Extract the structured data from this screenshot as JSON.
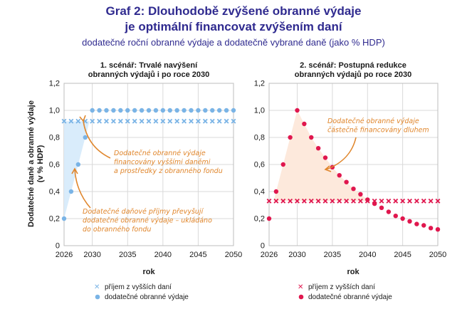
{
  "title_line1": "Graf 2: Dlouhodobě zvýšené obranné výdaje",
  "title_line2": "je optimální financovat zvýšením daní",
  "subtitle": "dodatečné roční obranné výdaje a dodatečně vybrané daně (jako % HDP)",
  "ylabel_line1": "Dodatečné daně a obranné výdaje",
  "ylabel_line2": "(v % HDP)",
  "colors": {
    "left_accent": "#7ab4e6",
    "right_accent": "#e0174e",
    "annotation": "#e0862c",
    "title": "#2f2a8f"
  },
  "chart_data": [
    {
      "type": "scatter",
      "panel": "left",
      "title_line1": "1. scénář: Trvalé navýšení",
      "title_line2": "obranných výdajů i po roce 2030",
      "xlabel": "rok",
      "xlim": [
        2026,
        2050
      ],
      "ylim": [
        0,
        1.2
      ],
      "x_ticks": [
        "2026",
        "2030",
        "2035",
        "2040",
        "2045",
        "2050"
      ],
      "y_ticks": [
        "0",
        "0,2",
        "0,4",
        "0,6",
        "0,8",
        "1,0",
        "1,2"
      ],
      "grid": true,
      "series": [
        {
          "name": "příjem z vyšších daní",
          "marker": "x",
          "x": [
            2026,
            2027,
            2028,
            2029,
            2030,
            2031,
            2032,
            2033,
            2034,
            2035,
            2036,
            2037,
            2038,
            2039,
            2040,
            2041,
            2042,
            2043,
            2044,
            2045,
            2046,
            2047,
            2048,
            2049,
            2050
          ],
          "y": [
            0.92,
            0.92,
            0.92,
            0.92,
            0.92,
            0.92,
            0.92,
            0.92,
            0.92,
            0.92,
            0.92,
            0.92,
            0.92,
            0.92,
            0.92,
            0.92,
            0.92,
            0.92,
            0.92,
            0.92,
            0.92,
            0.92,
            0.92,
            0.92,
            0.92
          ]
        },
        {
          "name": "dodatečné obranné výdaje",
          "marker": "dot",
          "x": [
            2026,
            2027,
            2028,
            2029,
            2030,
            2031,
            2032,
            2033,
            2034,
            2035,
            2036,
            2037,
            2038,
            2039,
            2040,
            2041,
            2042,
            2043,
            2044,
            2045,
            2046,
            2047,
            2048,
            2049,
            2050
          ],
          "y": [
            0.2,
            0.4,
            0.6,
            0.8,
            1.0,
            1.0,
            1.0,
            1.0,
            1.0,
            1.0,
            1.0,
            1.0,
            1.0,
            1.0,
            1.0,
            1.0,
            1.0,
            1.0,
            1.0,
            1.0,
            1.0,
            1.0,
            1.0,
            1.0,
            1.0
          ]
        }
      ],
      "annotations": [
        {
          "lines": [
            "Dodatečné obranné výdaje",
            "financovány vyššími daněmi",
            "a prostředky z obranného fondu"
          ]
        },
        {
          "lines": [
            "Dodatečné daňové příjmy převyšují",
            "dodatečné obranné výdaje – ukládáno",
            "do obranného fondu"
          ]
        }
      ]
    },
    {
      "type": "scatter",
      "panel": "right",
      "title_line1": "2. scénář: Postupná redukce",
      "title_line2": "obranných výdajů po roce 2030",
      "xlabel": "rok",
      "xlim": [
        2026,
        2050
      ],
      "ylim": [
        0,
        1.2
      ],
      "x_ticks": [
        "2026",
        "2030",
        "2035",
        "2040",
        "2045",
        "2050"
      ],
      "y_ticks": [
        "0",
        "0,2",
        "0,4",
        "0,6",
        "0,8",
        "1,0",
        "1,2"
      ],
      "grid": true,
      "series": [
        {
          "name": "příjem z vyšších daní",
          "marker": "x",
          "x": [
            2026,
            2027,
            2028,
            2029,
            2030,
            2031,
            2032,
            2033,
            2034,
            2035,
            2036,
            2037,
            2038,
            2039,
            2040,
            2041,
            2042,
            2043,
            2044,
            2045,
            2046,
            2047,
            2048,
            2049,
            2050
          ],
          "y": [
            0.33,
            0.33,
            0.33,
            0.33,
            0.33,
            0.33,
            0.33,
            0.33,
            0.33,
            0.33,
            0.33,
            0.33,
            0.33,
            0.33,
            0.33,
            0.33,
            0.33,
            0.33,
            0.33,
            0.33,
            0.33,
            0.33,
            0.33,
            0.33,
            0.33
          ]
        },
        {
          "name": "dodatečné obranné výdaje",
          "marker": "dot",
          "x": [
            2026,
            2027,
            2028,
            2029,
            2030,
            2031,
            2032,
            2033,
            2034,
            2035,
            2036,
            2037,
            2038,
            2039,
            2040,
            2041,
            2042,
            2043,
            2044,
            2045,
            2046,
            2047,
            2048,
            2049,
            2050
          ],
          "y": [
            0.2,
            0.4,
            0.6,
            0.8,
            1.0,
            0.9,
            0.8,
            0.72,
            0.65,
            0.58,
            0.52,
            0.47,
            0.42,
            0.38,
            0.34,
            0.31,
            0.28,
            0.25,
            0.22,
            0.2,
            0.18,
            0.16,
            0.15,
            0.13,
            0.12
          ]
        }
      ],
      "annotations": [
        {
          "lines": [
            "Dodatečné obranné výdaje",
            "částečně financovány dluhem"
          ]
        }
      ]
    }
  ]
}
